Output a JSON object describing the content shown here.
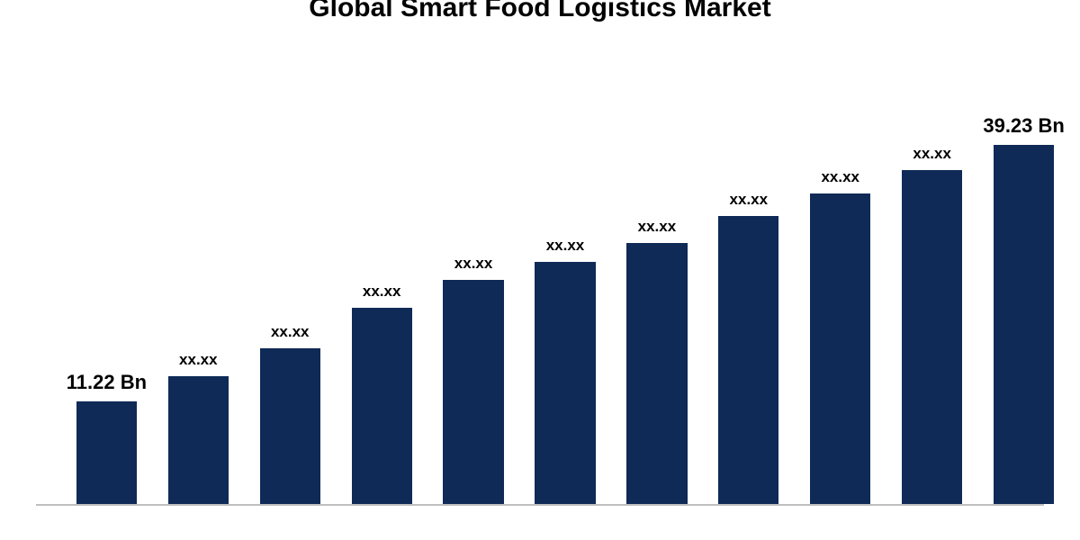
{
  "chart": {
    "type": "bar",
    "title": "Global Smart Food Logistics Market",
    "title_fontsize": 30,
    "title_color": "#000000",
    "background_color": "#ffffff",
    "axis_color": "#bfbfbf",
    "bar_color": "#0f2a57",
    "bar_width_pct": 6.0,
    "bar_gap_pct": 3.1,
    "left_margin_pct": 4.0,
    "ylim_max": 50,
    "bars": [
      {
        "value": 11.22,
        "label": "11.22 Bn",
        "label_fontsize": 22
      },
      {
        "value": 14.0,
        "label": "xx.xx",
        "label_fontsize": 17
      },
      {
        "value": 17.0,
        "label": "xx.xx",
        "label_fontsize": 17
      },
      {
        "value": 21.5,
        "label": "xx.xx",
        "label_fontsize": 17
      },
      {
        "value": 24.5,
        "label": "xx.xx",
        "label_fontsize": 17
      },
      {
        "value": 26.5,
        "label": "xx.xx",
        "label_fontsize": 17
      },
      {
        "value": 28.5,
        "label": "xx.xx",
        "label_fontsize": 17
      },
      {
        "value": 31.5,
        "label": "xx.xx",
        "label_fontsize": 17
      },
      {
        "value": 34.0,
        "label": "xx.xx",
        "label_fontsize": 17
      },
      {
        "value": 36.5,
        "label": "xx.xx",
        "label_fontsize": 17
      },
      {
        "value": 39.23,
        "label": "39.23 Bn",
        "label_fontsize": 22
      }
    ]
  }
}
